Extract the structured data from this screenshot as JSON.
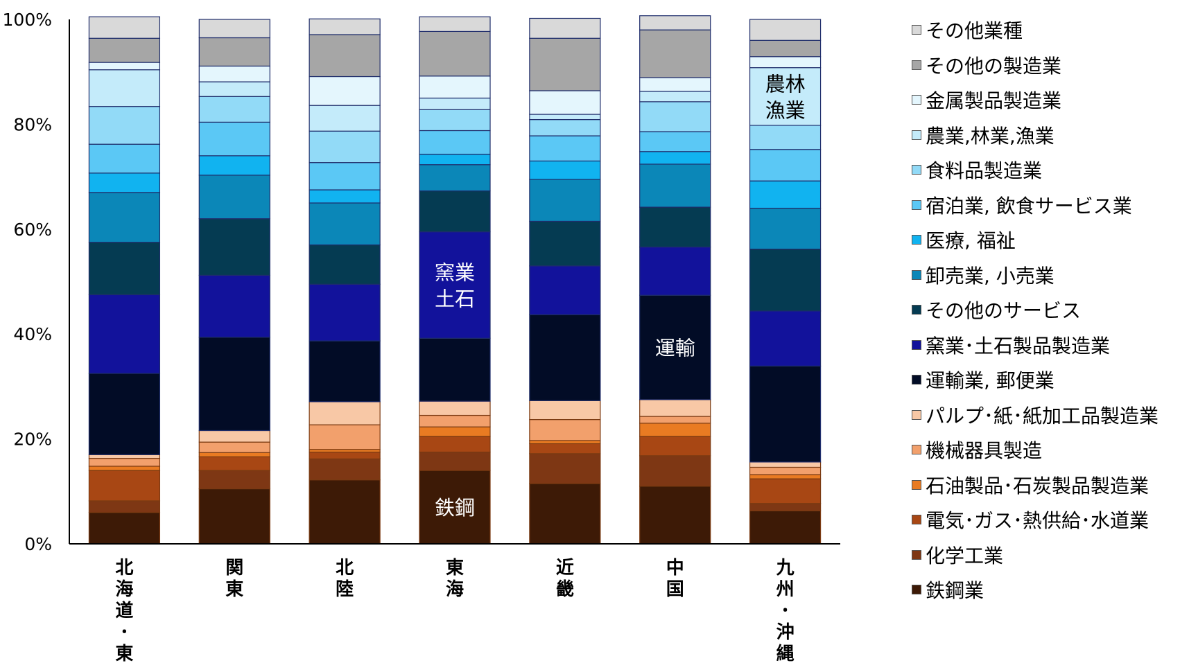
{
  "chart_data": {
    "type": "stacked-bar-100",
    "categories": [
      "北海道･東北",
      "関東",
      "北陸",
      "東海",
      "近畿",
      "中国",
      "九州･沖縄"
    ],
    "ylim": [
      0,
      100
    ],
    "yticks": [
      "0%",
      "20%",
      "40%",
      "60%",
      "80%",
      "100%"
    ],
    "grid": false,
    "legend_position": "right",
    "series": [
      {
        "name": "鉄鋼業",
        "color": "#3d1a06",
        "values": [
          6,
          10.5,
          12.2,
          14,
          11.5,
          11,
          6.3
        ]
      },
      {
        "name": "化学工業",
        "color": "#7e3714",
        "values": [
          2.2,
          3.5,
          4,
          3.5,
          5.7,
          5.8,
          1.4
        ]
      },
      {
        "name": "電気･ガス･熱供給･水道業",
        "color": "#a84714",
        "values": [
          5.8,
          2.6,
          1.3,
          3,
          1.9,
          3.7,
          4.7
        ]
      },
      {
        "name": "石油製品･石炭製品製造業",
        "color": "#e97b22",
        "values": [
          0.8,
          0.8,
          0.5,
          1.8,
          0.6,
          2.5,
          0.8
        ]
      },
      {
        "name": "機械器具製造",
        "color": "#f2a06c",
        "values": [
          1.5,
          2,
          4.7,
          2.2,
          4,
          1.3,
          1.4
        ]
      },
      {
        "name": "パルプ･紙･紙加工品製造業",
        "color": "#f8c8a6",
        "values": [
          0.7,
          2.2,
          4.4,
          2.7,
          3.6,
          3.2,
          1
        ]
      },
      {
        "name": "運輸業, 郵便業",
        "color": "#020c26",
        "values": [
          15.5,
          17.8,
          11.6,
          12,
          16.4,
          19.9,
          18.3
        ]
      },
      {
        "name": "窯業･土石製品製造業",
        "color": "#12129b",
        "values": [
          15,
          11.8,
          10.8,
          20.3,
          9.3,
          9.2,
          10.5
        ]
      },
      {
        "name": "その他のサービス",
        "color": "#053b52",
        "values": [
          10,
          10.8,
          7.5,
          7.8,
          8.5,
          7.6,
          11.8
        ]
      },
      {
        "name": "卸売業, 小売業",
        "color": "#0b87b8",
        "values": [
          9.5,
          8.3,
          8,
          5,
          8,
          8.2,
          7.8
        ]
      },
      {
        "name": "医療, 福祉",
        "color": "#11b3f0",
        "values": [
          3.7,
          3.7,
          2.5,
          2,
          3.5,
          2.4,
          5.2
        ]
      },
      {
        "name": "宿泊業, 飲食サービス業",
        "color": "#5bc8f5",
        "values": [
          5.5,
          6.4,
          5.2,
          4.5,
          4.8,
          3.8,
          6
        ]
      },
      {
        "name": "食料品製造業",
        "color": "#92daf7",
        "values": [
          7.2,
          4.9,
          6,
          4,
          3.1,
          5.7,
          4.6
        ]
      },
      {
        "name": "農業,林業,漁業",
        "color": "#c4ebfa",
        "values": [
          7,
          2.8,
          4.9,
          2.2,
          1,
          2,
          11
        ]
      },
      {
        "name": "金属製品製造業",
        "color": "#e4f6fd",
        "values": [
          1.4,
          3,
          5.5,
          4.2,
          4.5,
          2.6,
          2.1
        ]
      },
      {
        "name": "その他の製造業",
        "color": "#a6a6a6",
        "values": [
          4.6,
          5.4,
          8,
          8.5,
          10,
          9.1,
          3.1
        ]
      },
      {
        "name": "その他業種",
        "color": "#d9d9d9",
        "values": [
          4.1,
          3.5,
          3,
          2.8,
          3.8,
          2.7,
          4
        ]
      }
    ],
    "annotations": [
      {
        "text": "農林\n漁業",
        "category": "九州･沖縄",
        "series": "農業,林業,漁業",
        "color": "#000000"
      },
      {
        "text": "窯業\n土石",
        "category": "東海",
        "series": "窯業･土石製品製造業",
        "color": "#ffffff"
      },
      {
        "text": "運輸",
        "category": "中国",
        "series": "運輸業, 郵便業",
        "color": "#ffffff"
      },
      {
        "text": "鉄鋼",
        "category": "東海",
        "series": "鉄鋼業",
        "color": "#ffffff"
      }
    ]
  }
}
